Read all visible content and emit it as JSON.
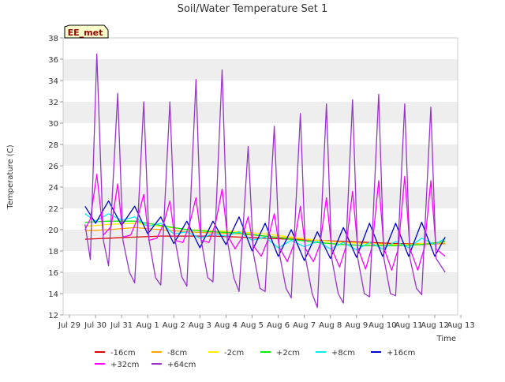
{
  "chart_data": {
    "type": "line",
    "title": "Soil/Water Temperature Set 1",
    "xlabel": "Time",
    "ylabel": "Temperature (C)",
    "station_label": "EE_met",
    "ylim": [
      12,
      38
    ],
    "yticks": [
      12,
      14,
      16,
      18,
      20,
      22,
      24,
      26,
      28,
      30,
      32,
      34,
      36,
      38
    ],
    "xlim": [
      0,
      16
    ],
    "xticks": [
      {
        "x": 0,
        "label": "Jul 29"
      },
      {
        "x": 1,
        "label": "Jul 30"
      },
      {
        "x": 2,
        "label": "Jul 31"
      },
      {
        "x": 3,
        "label": "Aug 1"
      },
      {
        "x": 4,
        "label": "Aug 2"
      },
      {
        "x": 5,
        "label": "Aug 3"
      },
      {
        "x": 6,
        "label": "Aug 4"
      },
      {
        "x": 7,
        "label": "Aug 5"
      },
      {
        "x": 8,
        "label": "Aug 6"
      },
      {
        "x": 9,
        "label": "Aug 7"
      },
      {
        "x": 10,
        "label": "Aug 8"
      },
      {
        "x": 11,
        "label": "Aug 9"
      },
      {
        "x": 12,
        "label": "Aug 10"
      },
      {
        "x": 13,
        "label": "Aug 11"
      },
      {
        "x": 14,
        "label": "Aug 12"
      },
      {
        "x": 15,
        "label": "Aug 13"
      }
    ],
    "grid": "horizontal bands",
    "legend_position": "bottom",
    "series": [
      {
        "name": "-16cm",
        "color": "#dd0000",
        "x": [
          0.6,
          1.5,
          2.5,
          3.5,
          4.5,
          5.5,
          6.5,
          7.5,
          8.5,
          9.5,
          10.5,
          11.5,
          12.5,
          13.5,
          14.4
        ],
        "y": [
          19.1,
          19.2,
          19.3,
          19.4,
          19.4,
          19.4,
          19.3,
          19.2,
          19.1,
          19.0,
          18.9,
          18.8,
          18.7,
          18.7,
          18.7
        ]
      },
      {
        "name": "-8cm",
        "color": "#ffa500",
        "x": [
          0.6,
          1.5,
          2.5,
          3.5,
          4.5,
          5.5,
          6.5,
          7.5,
          8.5,
          9.5,
          10.5,
          11.5,
          12.5,
          13.5,
          14.4
        ],
        "y": [
          19.9,
          20.0,
          20.2,
          20.0,
          19.8,
          19.7,
          19.6,
          19.4,
          19.2,
          19.0,
          18.8,
          18.7,
          18.6,
          18.6,
          18.7
        ]
      },
      {
        "name": "-2cm",
        "color": "#ffee00",
        "x": [
          0.6,
          1.5,
          2.5,
          3.5,
          4.5,
          5.5,
          6.5,
          7.5,
          8.5,
          9.5,
          10.5,
          11.5,
          12.5,
          13.5,
          14.4
        ],
        "y": [
          20.3,
          20.5,
          20.6,
          20.3,
          20.0,
          19.9,
          19.8,
          19.6,
          19.3,
          19.0,
          18.8,
          18.7,
          18.6,
          18.7,
          18.8
        ]
      },
      {
        "name": "+2cm",
        "color": "#00ee00",
        "x": [
          0.6,
          1.5,
          2.5,
          3.5,
          4.5,
          5.5,
          6.5,
          7.5,
          8.5,
          9.5,
          10.5,
          11.5,
          12.5,
          13.5,
          14.4
        ],
        "y": [
          20.7,
          20.8,
          20.8,
          20.4,
          20.0,
          19.8,
          19.7,
          19.4,
          19.1,
          18.8,
          18.6,
          18.5,
          18.5,
          18.6,
          18.9
        ]
      },
      {
        "name": "+8cm",
        "color": "#00eeee",
        "x": [
          0.6,
          1.0,
          1.5,
          2.0,
          2.5,
          3.0,
          3.5,
          4.0,
          4.5,
          5.0,
          5.5,
          6.0,
          6.5,
          7.0,
          7.5,
          8.0,
          8.5,
          9.0,
          9.5,
          10.0,
          10.5,
          11.0,
          11.5,
          12.0,
          12.5,
          13.0,
          13.5,
          14.0,
          14.4
        ],
        "y": [
          21.5,
          20.8,
          21.5,
          20.9,
          21.2,
          20.3,
          20.6,
          19.6,
          19.8,
          19.2,
          19.6,
          19.4,
          19.8,
          19.0,
          19.3,
          18.3,
          19.0,
          18.4,
          18.9,
          18.2,
          18.8,
          18.1,
          18.8,
          18.2,
          18.9,
          18.3,
          19.2,
          18.6,
          19.2
        ]
      },
      {
        "name": "+16cm",
        "color": "#0000cc",
        "x": [
          0.6,
          1.0,
          1.5,
          2.0,
          2.5,
          3.0,
          3.5,
          4.0,
          4.5,
          5.0,
          5.5,
          6.0,
          6.5,
          7.0,
          7.5,
          8.0,
          8.5,
          9.0,
          9.5,
          10.0,
          10.5,
          11.0,
          11.5,
          12.0,
          12.5,
          13.0,
          13.5,
          14.0,
          14.4
        ],
        "y": [
          22.2,
          20.6,
          22.7,
          20.4,
          22.2,
          19.6,
          21.2,
          18.7,
          20.8,
          18.3,
          20.8,
          18.6,
          21.2,
          18.0,
          20.6,
          17.5,
          20.0,
          17.1,
          19.8,
          17.3,
          20.2,
          17.4,
          20.6,
          17.5,
          20.6,
          17.5,
          20.7,
          17.5,
          19.3
        ]
      },
      {
        "name": "+32cm",
        "color": "#ff00ff",
        "x": [
          0.6,
          0.8,
          1.05,
          1.3,
          1.6,
          1.85,
          2.05,
          2.35,
          2.6,
          2.85,
          3.05,
          3.35,
          3.6,
          3.85,
          4.05,
          4.35,
          4.6,
          4.85,
          5.05,
          5.35,
          5.6,
          5.85,
          6.05,
          6.35,
          6.6,
          6.85,
          7.05,
          7.35,
          7.6,
          7.85,
          8.05,
          8.35,
          8.6,
          8.85,
          9.05,
          9.35,
          9.6,
          9.85,
          10.05,
          10.35,
          10.6,
          10.85,
          11.05,
          11.35,
          11.6,
          11.85,
          12.05,
          12.35,
          12.6,
          12.85,
          13.05,
          13.35,
          13.6,
          13.85,
          14.05,
          14.4
        ],
        "y": [
          20.0,
          21.0,
          25.2,
          19.5,
          20.3,
          24.3,
          19.3,
          19.5,
          21.0,
          23.3,
          19.0,
          19.2,
          20.5,
          22.7,
          19.0,
          18.8,
          20.5,
          23.0,
          19.0,
          18.8,
          20.6,
          23.8,
          19.5,
          18.2,
          19.2,
          21.2,
          18.5,
          17.5,
          19.0,
          21.5,
          18.3,
          17.0,
          18.6,
          22.2,
          18.2,
          17.0,
          18.6,
          23.0,
          18.2,
          16.5,
          18.4,
          23.6,
          18.3,
          16.3,
          18.4,
          24.6,
          18.3,
          16.2,
          18.2,
          25.0,
          18.2,
          16.2,
          18.3,
          24.6,
          18.2,
          17.5
        ]
      },
      {
        "name": "+64cm",
        "color": "#9933cc",
        "x": [
          0.6,
          0.8,
          1.05,
          1.3,
          1.5,
          1.85,
          2.05,
          2.3,
          2.5,
          2.85,
          3.05,
          3.3,
          3.5,
          3.85,
          4.05,
          4.3,
          4.5,
          4.85,
          5.05,
          5.3,
          5.5,
          5.85,
          6.05,
          6.3,
          6.5,
          6.85,
          7.05,
          7.3,
          7.5,
          7.85,
          8.05,
          8.3,
          8.5,
          8.85,
          9.05,
          9.3,
          9.5,
          9.85,
          10.05,
          10.3,
          10.5,
          10.85,
          11.05,
          11.3,
          11.5,
          11.85,
          12.05,
          12.3,
          12.5,
          12.85,
          13.05,
          13.3,
          13.5,
          13.85,
          14.05,
          14.4
        ],
        "y": [
          20.5,
          17.2,
          36.5,
          19.0,
          16.6,
          32.8,
          19.0,
          16.0,
          15.0,
          32.0,
          19.0,
          15.5,
          14.8,
          32.0,
          19.0,
          15.6,
          14.7,
          34.1,
          19.0,
          15.5,
          15.1,
          35.0,
          19.0,
          15.5,
          14.2,
          27.8,
          17.8,
          14.5,
          14.2,
          29.7,
          17.7,
          14.5,
          13.6,
          30.9,
          17.3,
          14.0,
          12.7,
          31.8,
          17.3,
          14.0,
          13.1,
          32.2,
          17.3,
          14.0,
          13.7,
          32.7,
          17.3,
          14.0,
          13.8,
          31.8,
          17.3,
          14.5,
          13.9,
          31.5,
          17.3,
          16.0
        ]
      }
    ]
  }
}
